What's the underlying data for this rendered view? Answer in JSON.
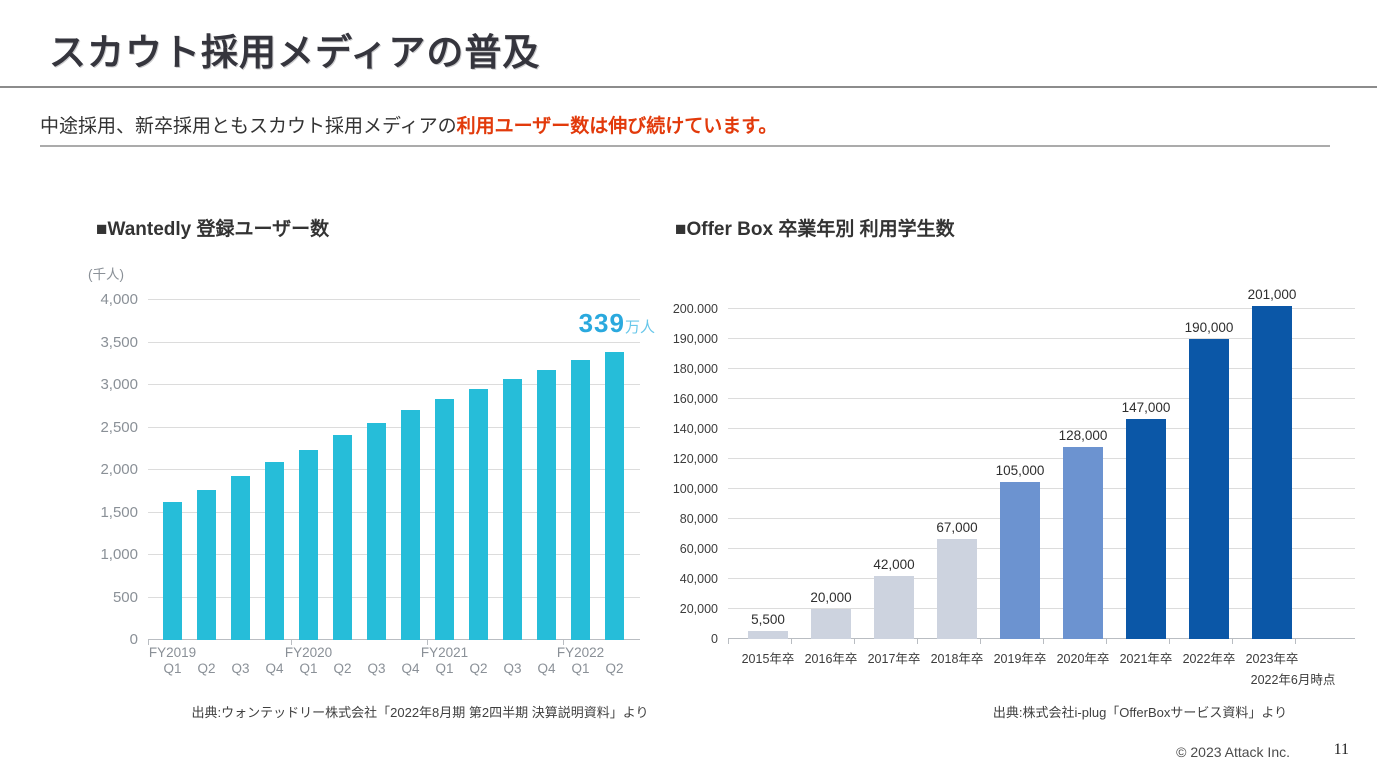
{
  "page": {
    "title": "スカウト採用メディアの普及",
    "subtitle": {
      "plain": "中途採用、新卒採用ともスカウト採用メディアの",
      "highlight": "利用ユーザー数は伸び続けています。"
    },
    "footer": {
      "copyright": "© 2023 Attack Inc.",
      "page_number": "11"
    },
    "colors": {
      "accent_red": "#E23A0B",
      "wantedly_bar": "#26BDD9",
      "offerbox_gray": "#CDD3DF",
      "offerbox_mid_blue": "#6C93D0",
      "offerbox_dark_blue": "#0B57A7"
    }
  },
  "chart_data": [
    {
      "id": "wantedly",
      "type": "bar",
      "title": "■Wantedly 登録ユーザー数",
      "unit_label": "(千人)",
      "categories": [
        "Q1",
        "Q2",
        "Q3",
        "Q4",
        "Q1",
        "Q2",
        "Q3",
        "Q4",
        "Q1",
        "Q2",
        "Q3",
        "Q4",
        "Q1",
        "Q2"
      ],
      "group_labels": [
        {
          "label": "FY2019",
          "index": 0
        },
        {
          "label": "FY2020",
          "index": 4
        },
        {
          "label": "FY2021",
          "index": 8
        },
        {
          "label": "FY2022",
          "index": 12
        }
      ],
      "values": [
        1620,
        1760,
        1930,
        2090,
        2240,
        2410,
        2550,
        2710,
        2840,
        2950,
        3070,
        3180,
        3290,
        3390
      ],
      "ylim": [
        0,
        4000
      ],
      "yticks": [
        0,
        500,
        1000,
        1500,
        2000,
        2500,
        3000,
        3500,
        4000
      ],
      "ytick_labels": [
        "0",
        "500",
        "1,000",
        "1,500",
        "2,000",
        "2,500",
        "3,000",
        "3,500",
        "4,000"
      ],
      "grid": true,
      "legend": "none",
      "bar_color": "#26BDD9",
      "annotation": {
        "number": "339",
        "suffix": "万人"
      },
      "source": "出典:ウォンテッドリー株式会社「2022年8月期 第2四半期 決算説明資料」より"
    },
    {
      "id": "offerbox",
      "type": "bar",
      "title": "■Offer Box 卒業年別 利用学生数",
      "categories": [
        "2015年卒",
        "2016年卒",
        "2017年卒",
        "2018年卒",
        "2019年卒",
        "2020年卒",
        "2021年卒",
        "2022年卒",
        "2023年卒"
      ],
      "values": [
        5500,
        20000,
        42000,
        67000,
        105000,
        128000,
        147000,
        190000,
        201000
      ],
      "value_labels": [
        "5,500",
        "20,000",
        "42,000",
        "67,000",
        "105,000",
        "128,000",
        "147,000",
        "190,000",
        "201,000"
      ],
      "yticks": [
        0,
        20000,
        40000,
        60000,
        80000,
        100000,
        120000,
        140000,
        160000,
        180000,
        190000,
        200000
      ],
      "ytick_labels": [
        "0",
        "20,000",
        "40,000",
        "60,000",
        "80,000",
        "100,000",
        "120,000",
        "140,000",
        "160,000",
        "180,000",
        "190,000",
        "200.000"
      ],
      "grid": true,
      "legend": "none",
      "bar_colors": [
        "#CDD3DF",
        "#CDD3DF",
        "#CDD3DF",
        "#CDD3DF",
        "#6C93D0",
        "#6C93D0",
        "#0B57A7",
        "#0B57A7",
        "#0B57A7"
      ],
      "x_note": "2022年6月時点",
      "source": "出典:株式会社i-plug「OfferBoxサービス資料」より"
    }
  ]
}
